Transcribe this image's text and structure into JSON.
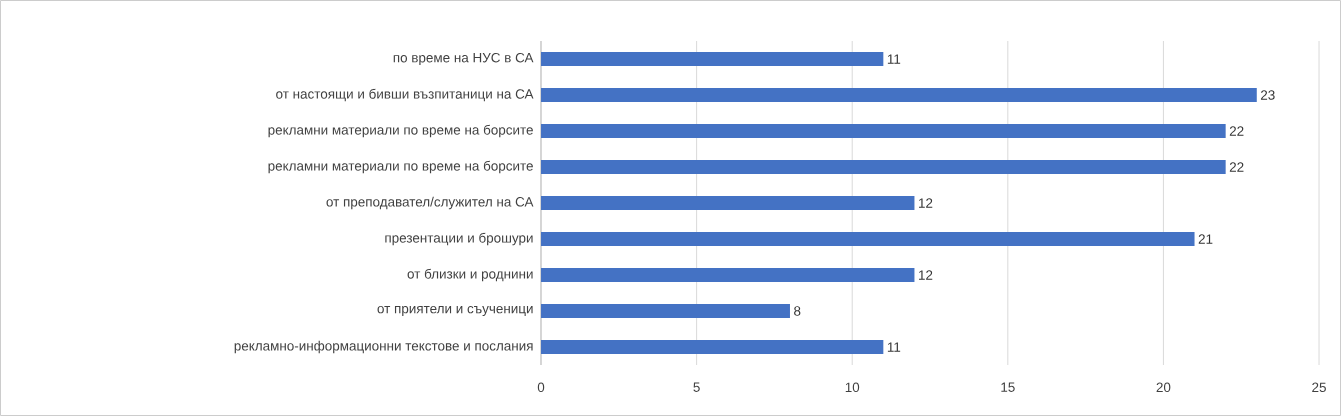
{
  "chart_data": {
    "type": "bar",
    "orientation": "horizontal",
    "categories": [
      "по време на НУС в СА",
      "от настоящи и бивши възпитаници на СА",
      "рекламни материали по време на борсите",
      "рекламни материали по време на борсите",
      "от преподавател/служител на СА",
      "презентации и брошури",
      "от близки и роднини",
      "от приятели и съученици",
      "рекламно-информационни текстове и послания"
    ],
    "values": [
      11,
      23,
      22,
      22,
      12,
      21,
      12,
      8,
      11
    ],
    "color": "#4472c4",
    "xlim": [
      0,
      25
    ],
    "xticks": [
      0,
      5,
      10,
      15,
      20,
      25
    ],
    "grid": "x",
    "data_labels": true
  }
}
